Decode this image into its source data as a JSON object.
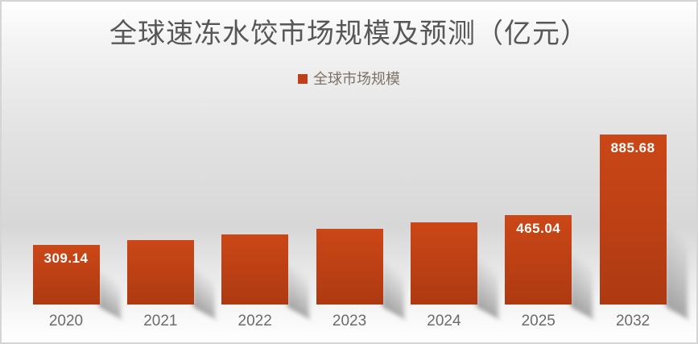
{
  "chart_data": {
    "type": "bar",
    "title": "全球速冻水饺市场规模及预测（亿元）",
    "legend_label": "全球市场规模",
    "legend_position": "top-center",
    "grid": false,
    "axes_shown": false,
    "categories": [
      "2020",
      "2021",
      "2022",
      "2023",
      "2024",
      "2025",
      "2032"
    ],
    "values": [
      309.14,
      335,
      364,
      395,
      428,
      465.04,
      885.68
    ],
    "data_labels": [
      "309.14",
      "",
      "",
      "",
      "",
      "465.04",
      "885.68"
    ],
    "ylim": [
      0,
      950
    ],
    "colors": {
      "bar_top": "#cb4717",
      "bar_bottom": "#ae3a12",
      "legend_swatch": "#bf3f1a",
      "value_label": "#ffffff",
      "title_text": "#575757",
      "axis_label_text": "#6b6b6b",
      "legend_text": "#7d7166"
    }
  }
}
